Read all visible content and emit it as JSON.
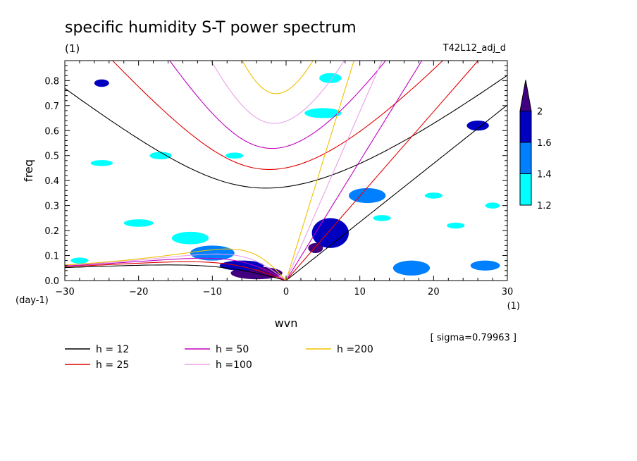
{
  "chart_data": {
    "type": "heatmap",
    "title": "specific humidity S-T power spectrum",
    "subtitle": "(1)",
    "run_label": "T42L12_adj_d",
    "xlabel": "wvn",
    "ylabel": "freq",
    "x_unit": "(1)",
    "y_unit": "(day-1)",
    "xlim": [
      -30,
      30
    ],
    "ylim": [
      0.0,
      0.88
    ],
    "x_ticks": [
      -30,
      -20,
      -10,
      0,
      10,
      20,
      30
    ],
    "y_ticks": [
      0.0,
      0.1,
      0.2,
      0.3,
      0.4,
      0.5,
      0.6,
      0.7,
      0.8
    ],
    "sigma_note": "[ sigma=0.79963 ]",
    "colorbar": {
      "levels": [
        1.2,
        1.4,
        1.6,
        2
      ],
      "labels": [
        "1.2",
        "1.4",
        "1.6",
        "2"
      ],
      "colors": [
        "#00ffff",
        "#0080ff",
        "#0000c0",
        "#400080"
      ]
    },
    "contour_regions": [
      {
        "x": -4,
        "y": 0.03,
        "rx": 3.5,
        "ry": 0.025,
        "level": 2
      },
      {
        "x": -6,
        "y": 0.06,
        "rx": 3,
        "ry": 0.02,
        "level": 1.6
      },
      {
        "x": -10,
        "y": 0.11,
        "rx": 3,
        "ry": 0.03,
        "level": 1.4
      },
      {
        "x": -13,
        "y": 0.17,
        "rx": 2.5,
        "ry": 0.025,
        "level": 1.2
      },
      {
        "x": 6,
        "y": 0.19,
        "rx": 2.5,
        "ry": 0.06,
        "level": 1.6
      },
      {
        "x": 4,
        "y": 0.13,
        "rx": 1,
        "ry": 0.02,
        "level": 2
      },
      {
        "x": 11,
        "y": 0.34,
        "rx": 2.5,
        "ry": 0.03,
        "level": 1.4
      },
      {
        "x": 17,
        "y": 0.05,
        "rx": 2.5,
        "ry": 0.03,
        "level": 1.4
      },
      {
        "x": 27,
        "y": 0.06,
        "rx": 2,
        "ry": 0.02,
        "level": 1.4
      },
      {
        "x": 26,
        "y": 0.62,
        "rx": 1.5,
        "ry": 0.02,
        "level": 1.6
      },
      {
        "x": -25,
        "y": 0.79,
        "rx": 1,
        "ry": 0.015,
        "level": 1.6
      },
      {
        "x": -20,
        "y": 0.23,
        "rx": 2,
        "ry": 0.015,
        "level": 1.2
      },
      {
        "x": 5,
        "y": 0.67,
        "rx": 2.5,
        "ry": 0.02,
        "level": 1.2
      },
      {
        "x": 6,
        "y": 0.81,
        "rx": 1.5,
        "ry": 0.02,
        "level": 1.2
      },
      {
        "x": -17,
        "y": 0.5,
        "rx": 1.5,
        "ry": 0.015,
        "level": 1.2
      },
      {
        "x": -25,
        "y": 0.47,
        "rx": 1.5,
        "ry": 0.012,
        "level": 1.2
      },
      {
        "x": 20,
        "y": 0.34,
        "rx": 1.2,
        "ry": 0.012,
        "level": 1.2
      },
      {
        "x": 23,
        "y": 0.22,
        "rx": 1.2,
        "ry": 0.012,
        "level": 1.2
      },
      {
        "x": -28,
        "y": 0.08,
        "rx": 1.2,
        "ry": 0.012,
        "level": 1.2
      },
      {
        "x": 13,
        "y": 0.25,
        "rx": 1.2,
        "ry": 0.012,
        "level": 1.2
      },
      {
        "x": 28,
        "y": 0.3,
        "rx": 1,
        "ry": 0.012,
        "level": 1.2
      },
      {
        "x": -7,
        "y": 0.5,
        "rx": 1.2,
        "ry": 0.012,
        "level": 1.2
      }
    ],
    "dispersion_curves": [
      {
        "name": "h = 12",
        "h": 12,
        "color": "#000000"
      },
      {
        "name": "h = 25",
        "h": 25,
        "color": "#e00000"
      },
      {
        "name": "h = 50",
        "h": 50,
        "color": "#c000c0"
      },
      {
        "name": "h =100",
        "h": 100,
        "color": "#e8a0e8"
      },
      {
        "name": "h =200",
        "h": 200,
        "color": "#f0c000"
      }
    ]
  }
}
